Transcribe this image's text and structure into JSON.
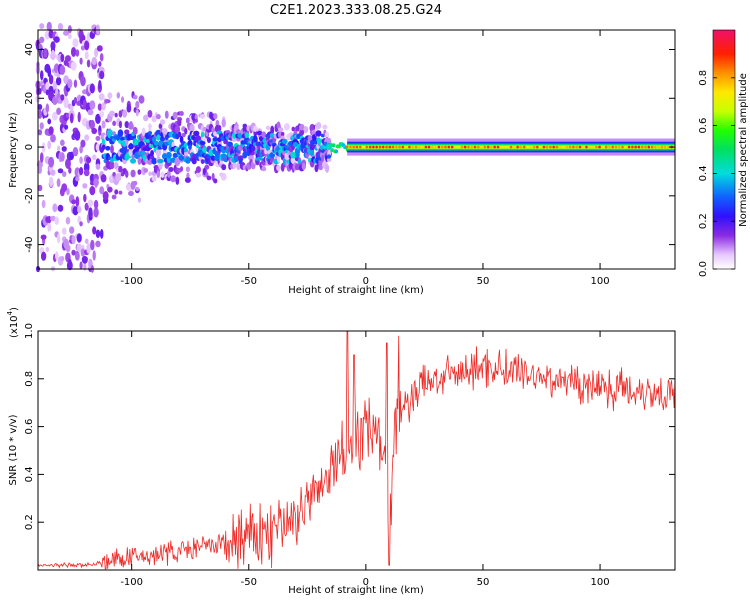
{
  "title": "C2E1.2023.333.08.25.G24",
  "chart_data": [
    {
      "type": "heatmap",
      "xlabel": "Height of straight line (km)",
      "ylabel": "Frequency (Hz)",
      "xlim": [
        -140,
        132
      ],
      "ylim": [
        -50,
        48
      ],
      "xticks": [
        -100,
        -50,
        0,
        50,
        100
      ],
      "yticks": [
        -40,
        -20,
        0,
        20,
        40
      ],
      "colorbar": {
        "label": "Normalized spectral amplitude",
        "range": [
          0,
          1
        ],
        "ticks": [
          "0.0",
          "0.2",
          "0.4",
          "0.6",
          "0.8"
        ],
        "tick_values": [
          0.0,
          0.2,
          0.4,
          0.6,
          0.8
        ],
        "colormap": "rainbow (white-violet-blue-cyan-green-yellow-orange-red-magenta)"
      },
      "features": [
        {
          "x_range": [
            -140,
            -112
          ],
          "freq_spread_hz": 50,
          "amplitude": 0.1
        },
        {
          "x_range": [
            -112,
            -18
          ],
          "freq_spread_hz": 8,
          "amplitude": 0.3
        },
        {
          "x_range": [
            -8,
            132
          ],
          "freq_center_hz": 0,
          "freq_spread_hz": 2,
          "amplitude": 0.7
        }
      ]
    },
    {
      "type": "line",
      "xlabel": "Height of straight line (km)",
      "ylabel": "SNR (10 * v/v)",
      "yscale_label": "(x10",
      "yscale_exp": "4",
      "xlim": [
        -140,
        132
      ],
      "ylim": [
        0,
        1.0
      ],
      "xticks": [
        -100,
        -50,
        0,
        50,
        100
      ],
      "yticks": [
        "0.2",
        "0.4",
        "0.6",
        "0.8",
        "1.0"
      ],
      "ytick_values": [
        0.2,
        0.4,
        0.6,
        0.8,
        1.0
      ],
      "line_color": "#ee2a26",
      "x": [
        -140,
        -120,
        -113,
        -100,
        -80,
        -60,
        -40,
        -30,
        -20,
        -15,
        -10,
        -5,
        0,
        5,
        8,
        10,
        12,
        15,
        20,
        25,
        30,
        40,
        50,
        60,
        70,
        80,
        90,
        100,
        110,
        120,
        132
      ],
      "y": [
        0.02,
        0.02,
        0.03,
        0.05,
        0.08,
        0.11,
        0.16,
        0.22,
        0.33,
        0.4,
        0.5,
        0.55,
        0.6,
        0.62,
        0.45,
        0.15,
        0.55,
        0.65,
        0.73,
        0.78,
        0.8,
        0.82,
        0.85,
        0.84,
        0.82,
        0.8,
        0.78,
        0.77,
        0.76,
        0.75,
        0.74
      ],
      "spikes": [
        {
          "x": -8,
          "y": 1.0
        },
        {
          "x": -5,
          "y": 0.9
        },
        {
          "x": 9,
          "y": 0.95
        },
        {
          "x": 10,
          "y": 0.02
        },
        {
          "x": 14,
          "y": 0.98
        }
      ]
    }
  ]
}
